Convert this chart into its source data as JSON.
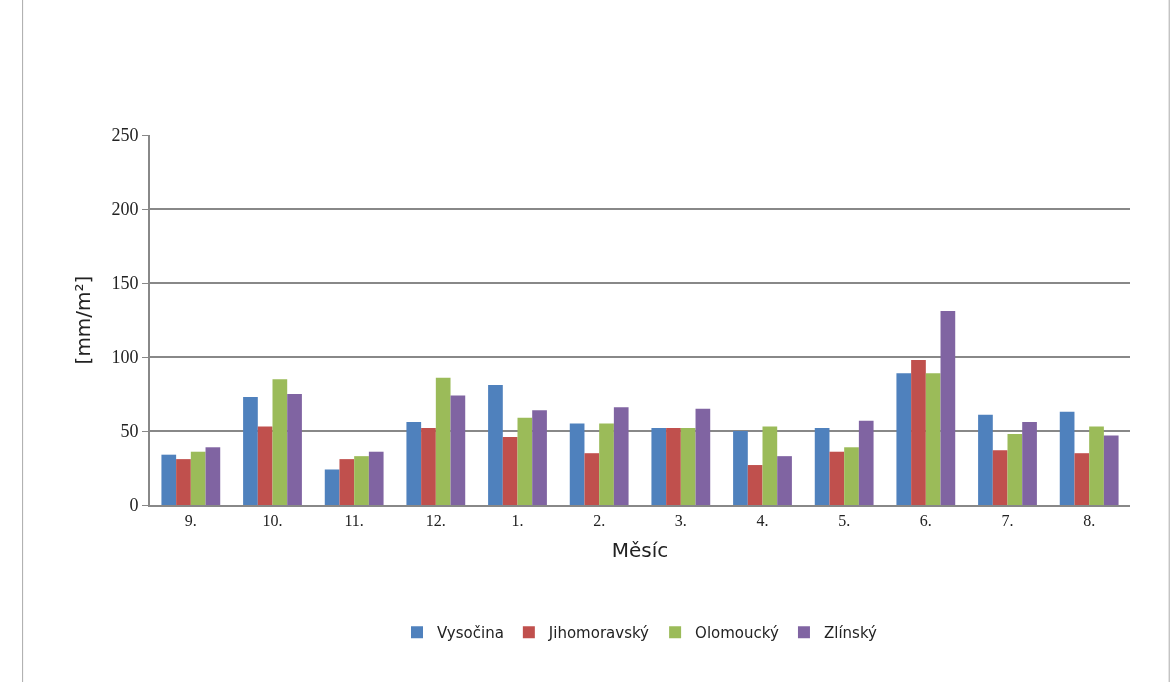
{
  "chart_data": {
    "type": "bar",
    "xlabel": "Měsíc",
    "ylabel": "[mm/m²]",
    "categories": [
      "9.",
      "10.",
      "11.",
      "12.",
      "1.",
      "2.",
      "3.",
      "4.",
      "5.",
      "6.",
      "7.",
      "8."
    ],
    "series": [
      {
        "name": "Vysočina",
        "color": "#4f81bd",
        "values": [
          34,
          73,
          24,
          56,
          81,
          55,
          52,
          50,
          52,
          89,
          61,
          63
        ]
      },
      {
        "name": "Jihomoravský",
        "color": "#c0504d",
        "values": [
          31,
          53,
          31,
          52,
          46,
          35,
          52,
          27,
          36,
          98,
          37,
          35
        ]
      },
      {
        "name": "Olomoucký",
        "color": "#9bbb59",
        "values": [
          36,
          85,
          33,
          86,
          59,
          55,
          52,
          53,
          39,
          89,
          48,
          53
        ]
      },
      {
        "name": "Zlínský",
        "color": "#8064a2",
        "values": [
          39,
          75,
          36,
          74,
          64,
          66,
          65,
          33,
          57,
          131,
          56,
          47
        ]
      }
    ],
    "ylim": [
      0,
      250
    ],
    "yticks": [
      0,
      50,
      100,
      150,
      200,
      250
    ],
    "grid": "y",
    "legend": "bottom"
  }
}
